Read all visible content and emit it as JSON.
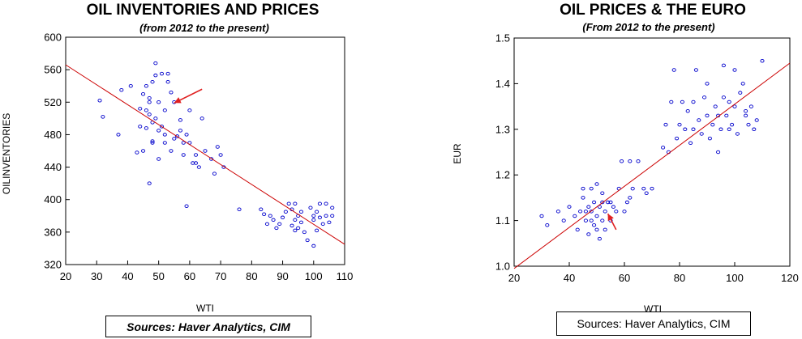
{
  "chart_data": [
    {
      "type": "scatter",
      "title": "OIL INVENTORIES AND PRICES",
      "subtitle": "(from 2012 to the present)",
      "xlabel": "WTI",
      "ylabel": "OILINVENTORIES",
      "xlim": [
        20,
        110
      ],
      "ylim": [
        320,
        600
      ],
      "xticks": [
        "20",
        "30",
        "40",
        "50",
        "60",
        "70",
        "80",
        "90",
        "100",
        "110"
      ],
      "yticks": [
        "320",
        "360",
        "400",
        "440",
        "480",
        "520",
        "560",
        "600"
      ],
      "point_color": "#0000cc",
      "trend_color": "#cc0000",
      "trendline": {
        "x": [
          20,
          110
        ],
        "y": [
          566,
          345
        ]
      },
      "arrow": {
        "from": [
          64,
          536
        ],
        "to": [
          55,
          519
        ]
      },
      "points": [
        [
          31,
          522
        ],
        [
          32,
          502
        ],
        [
          37,
          480
        ],
        [
          38,
          535
        ],
        [
          41,
          540
        ],
        [
          43,
          458
        ],
        [
          44,
          512
        ],
        [
          45,
          460
        ],
        [
          45,
          530
        ],
        [
          46,
          488
        ],
        [
          47,
          505
        ],
        [
          47,
          520
        ],
        [
          46,
          540
        ],
        [
          48,
          545
        ],
        [
          48,
          495
        ],
        [
          49,
          568
        ],
        [
          49,
          553
        ],
        [
          48,
          472
        ],
        [
          50,
          485
        ],
        [
          51,
          555
        ],
        [
          52,
          510
        ],
        [
          52,
          480
        ],
        [
          53,
          545
        ],
        [
          53,
          555
        ],
        [
          54,
          532
        ],
        [
          55,
          520
        ],
        [
          56,
          478
        ],
        [
          57,
          498
        ],
        [
          58,
          470
        ],
        [
          59,
          480
        ],
        [
          60,
          510
        ],
        [
          61,
          445
        ],
        [
          62,
          455
        ],
        [
          64,
          500
        ],
        [
          65,
          460
        ],
        [
          67,
          450
        ],
        [
          68,
          432
        ],
        [
          69,
          465
        ],
        [
          70,
          455
        ],
        [
          71,
          440
        ],
        [
          44,
          490
        ],
        [
          46,
          510
        ],
        [
          47,
          525
        ],
        [
          48,
          470
        ],
        [
          49,
          500
        ],
        [
          50,
          450
        ],
        [
          50,
          520
        ],
        [
          51,
          490
        ],
        [
          52,
          470
        ],
        [
          54,
          460
        ],
        [
          55,
          475
        ],
        [
          57,
          485
        ],
        [
          58,
          455
        ],
        [
          59,
          392
        ],
        [
          60,
          470
        ],
        [
          62,
          445
        ],
        [
          63,
          440
        ],
        [
          47,
          420
        ],
        [
          76,
          388
        ],
        [
          83,
          388
        ],
        [
          84,
          382
        ],
        [
          85,
          370
        ],
        [
          86,
          380
        ],
        [
          87,
          375
        ],
        [
          88,
          365
        ],
        [
          89,
          370
        ],
        [
          90,
          378
        ],
        [
          91,
          385
        ],
        [
          92,
          395
        ],
        [
          93,
          368
        ],
        [
          93,
          388
        ],
        [
          94,
          395
        ],
        [
          94,
          375
        ],
        [
          95,
          365
        ],
        [
          95,
          380
        ],
        [
          96,
          372
        ],
        [
          97,
          360
        ],
        [
          98,
          350
        ],
        [
          99,
          390
        ],
        [
          100,
          343
        ],
        [
          100,
          375
        ],
        [
          101,
          385
        ],
        [
          101,
          362
        ],
        [
          102,
          395
        ],
        [
          102,
          378
        ],
        [
          103,
          370
        ],
        [
          104,
          380
        ],
        [
          104,
          395
        ],
        [
          105,
          372
        ],
        [
          106,
          390
        ],
        [
          106,
          380
        ],
        [
          96,
          385
        ],
        [
          94,
          362
        ],
        [
          100,
          380
        ]
      ]
    },
    {
      "type": "scatter",
      "title": "OIL PRICES & THE EURO",
      "subtitle": "(From 2012 to the present)",
      "xlabel": "WTI",
      "ylabel": "EUR",
      "xlim": [
        20,
        120
      ],
      "ylim": [
        1.0,
        1.5
      ],
      "xticks": [
        "20",
        "40",
        "60",
        "80",
        "100",
        "120"
      ],
      "yticks": [
        "1.0",
        "1.1",
        "1.2",
        "1.3",
        "1.4",
        "1.5"
      ],
      "point_color": "#0000cc",
      "trend_color": "#cc0000",
      "trendline": {
        "x": [
          20,
          120
        ],
        "y": [
          0.995,
          1.445
        ]
      },
      "arrow": {
        "from": [
          57,
          1.08
        ],
        "to": [
          54,
          1.115
        ]
      },
      "points": [
        [
          30,
          1.11
        ],
        [
          32,
          1.09
        ],
        [
          36,
          1.12
        ],
        [
          38,
          1.1
        ],
        [
          40,
          1.13
        ],
        [
          42,
          1.11
        ],
        [
          43,
          1.08
        ],
        [
          44,
          1.12
        ],
        [
          45,
          1.15
        ],
        [
          46,
          1.1
        ],
        [
          47,
          1.13
        ],
        [
          47,
          1.07
        ],
        [
          48,
          1.12
        ],
        [
          48,
          1.17
        ],
        [
          49,
          1.09
        ],
        [
          49,
          1.14
        ],
        [
          50,
          1.18
        ],
        [
          50,
          1.11
        ],
        [
          51,
          1.06
        ],
        [
          51,
          1.13
        ],
        [
          52,
          1.1
        ],
        [
          52,
          1.16
        ],
        [
          53,
          1.08
        ],
        [
          53,
          1.12
        ],
        [
          54,
          1.14
        ],
        [
          55,
          1.1
        ],
        [
          56,
          1.13
        ],
        [
          57,
          1.12
        ],
        [
          58,
          1.17
        ],
        [
          59,
          1.23
        ],
        [
          60,
          1.12
        ],
        [
          61,
          1.14
        ],
        [
          62,
          1.23
        ],
        [
          63,
          1.17
        ],
        [
          65,
          1.23
        ],
        [
          67,
          1.17
        ],
        [
          68,
          1.16
        ],
        [
          70,
          1.17
        ],
        [
          74,
          1.26
        ],
        [
          75,
          1.31
        ],
        [
          76,
          1.25
        ],
        [
          77,
          1.36
        ],
        [
          78,
          1.43
        ],
        [
          79,
          1.28
        ],
        [
          80,
          1.31
        ],
        [
          81,
          1.36
        ],
        [
          82,
          1.3
        ],
        [
          83,
          1.34
        ],
        [
          84,
          1.27
        ],
        [
          85,
          1.36
        ],
        [
          86,
          1.43
        ],
        [
          87,
          1.32
        ],
        [
          88,
          1.29
        ],
        [
          89,
          1.37
        ],
        [
          90,
          1.33
        ],
        [
          90,
          1.4
        ],
        [
          91,
          1.28
        ],
        [
          92,
          1.31
        ],
        [
          93,
          1.35
        ],
        [
          94,
          1.25
        ],
        [
          95,
          1.3
        ],
        [
          96,
          1.37
        ],
        [
          96,
          1.44
        ],
        [
          97,
          1.33
        ],
        [
          98,
          1.36
        ],
        [
          99,
          1.31
        ],
        [
          100,
          1.43
        ],
        [
          100,
          1.35
        ],
        [
          101,
          1.29
        ],
        [
          102,
          1.38
        ],
        [
          103,
          1.4
        ],
        [
          104,
          1.33
        ],
        [
          105,
          1.31
        ],
        [
          106,
          1.35
        ],
        [
          107,
          1.3
        ],
        [
          108,
          1.32
        ],
        [
          110,
          1.45
        ],
        [
          46,
          1.12
        ],
        [
          48,
          1.1
        ],
        [
          50,
          1.08
        ],
        [
          55,
          1.14
        ],
        [
          62,
          1.15
        ],
        [
          98,
          1.3
        ],
        [
          104,
          1.34
        ],
        [
          94,
          1.33
        ],
        [
          85,
          1.3
        ],
        [
          52,
          1.14
        ],
        [
          45,
          1.17
        ]
      ]
    }
  ],
  "sources": {
    "left": "Sources: Haver Analytics, CIM",
    "right": "Sources: Haver Analytics, CIM"
  }
}
